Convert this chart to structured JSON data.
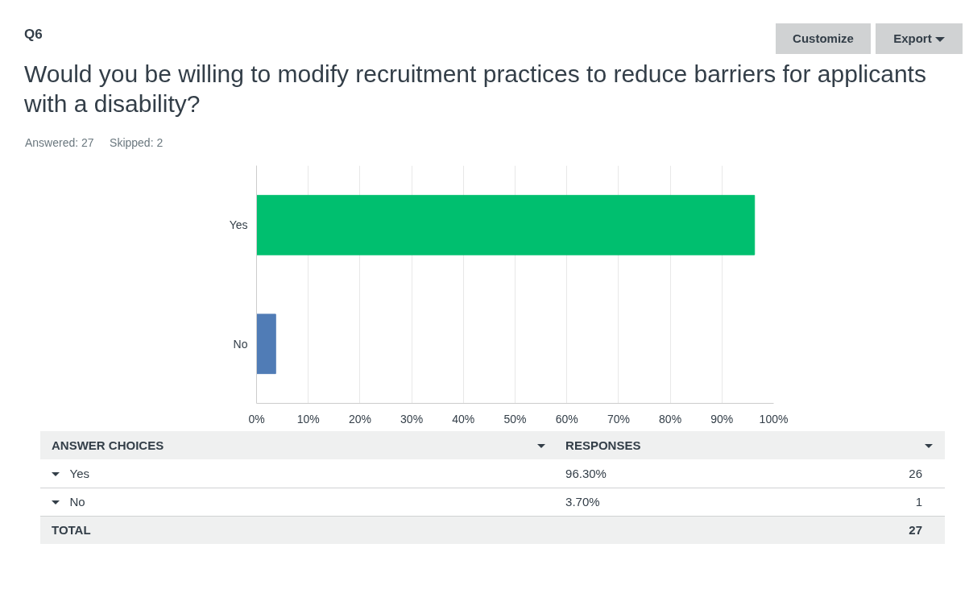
{
  "chart_data": {
    "type": "bar",
    "orientation": "horizontal",
    "title": "Would you be willing to modify recruitment practices to reduce barriers for applicants with a disability?",
    "categories": [
      "Yes",
      "No"
    ],
    "values": [
      96.3,
      3.7
    ],
    "colors": [
      "#00bf6f",
      "#507cb6"
    ],
    "xlim": [
      0,
      100
    ],
    "xticks": [
      {
        "value": 0,
        "label": "0%"
      },
      {
        "value": 10,
        "label": "10%"
      },
      {
        "value": 20,
        "label": "20%"
      },
      {
        "value": 30,
        "label": "30%"
      },
      {
        "value": 40,
        "label": "40%"
      },
      {
        "value": 50,
        "label": "50%"
      },
      {
        "value": 60,
        "label": "60%"
      },
      {
        "value": 70,
        "label": "70%"
      },
      {
        "value": 80,
        "label": "80%"
      },
      {
        "value": 90,
        "label": "90%"
      },
      {
        "value": 100,
        "label": "100%"
      }
    ],
    "grid": "x",
    "annotations": [
      "Q6",
      "Answered: 27",
      "Skipped: 2",
      "Customize",
      "Export",
      "ANSWER CHOICES",
      "RESPONSES",
      "96.30%",
      "26",
      "3.70%",
      "1",
      "TOTAL",
      "27"
    ]
  }
}
